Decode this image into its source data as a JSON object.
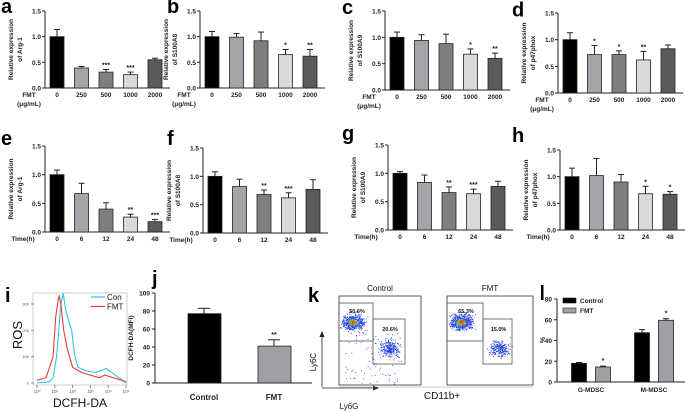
{
  "chart_data": [
    {
      "panel": "a",
      "type": "bar",
      "categories": [
        "0",
        "250",
        "500",
        "1000",
        "2000"
      ],
      "values": [
        1.0,
        0.39,
        0.31,
        0.26,
        0.55
      ],
      "errors": [
        0.14,
        0.03,
        0.05,
        0.05,
        0.03
      ],
      "significance": [
        "",
        "",
        "***",
        "***",
        ""
      ],
      "xlabel_lines": [
        "FMT",
        "(μg/mL)"
      ],
      "ylabel_lines": [
        "Relative expression",
        "of Arg-1"
      ],
      "ylim": [
        0,
        1.5
      ],
      "yticks": [
        "0.0",
        "0.5",
        "1.0",
        "1.5"
      ]
    },
    {
      "panel": "b",
      "type": "bar",
      "categories": [
        "0",
        "250",
        "500",
        "1000",
        "2000"
      ],
      "values": [
        1.0,
        0.99,
        0.92,
        0.65,
        0.62
      ],
      "errors": [
        0.1,
        0.07,
        0.17,
        0.1,
        0.13
      ],
      "significance": [
        "",
        "",
        "",
        "*",
        "**"
      ],
      "xlabel_lines": [
        "FMT",
        "(μg/mL)"
      ],
      "ylabel_lines": [
        "Relative expression",
        "of S100A8"
      ],
      "ylim": [
        0,
        1.5
      ],
      "yticks": [
        "0.0",
        "0.5",
        "1.0",
        "1.5"
      ]
    },
    {
      "panel": "c",
      "type": "bar",
      "categories": [
        "0",
        "250",
        "500",
        "1000",
        "2000"
      ],
      "values": [
        1.0,
        0.94,
        0.88,
        0.68,
        0.6
      ],
      "errors": [
        0.1,
        0.11,
        0.18,
        0.1,
        0.1
      ],
      "significance": [
        "",
        "",
        "",
        "*",
        "**"
      ],
      "xlabel_lines": [
        "FMT",
        "(μg/mL)"
      ],
      "ylabel_lines": [
        "Relative expression",
        "of S100A9"
      ],
      "ylim": [
        0,
        1.5
      ],
      "yticks": [
        "0.0",
        "0.5",
        "1.0",
        "1.5"
      ]
    },
    {
      "panel": "d",
      "type": "bar",
      "categories": [
        "0",
        "250",
        "500",
        "1000",
        "2000"
      ],
      "values": [
        1.0,
        0.72,
        0.72,
        0.62,
        0.83
      ],
      "errors": [
        0.13,
        0.17,
        0.07,
        0.16,
        0.07
      ],
      "significance": [
        "",
        "*",
        "*",
        "**",
        ""
      ],
      "xlabel_lines": [
        "FMT",
        "(μg/mL)"
      ],
      "ylabel_lines": [
        "Relative expression",
        "of p47phox"
      ],
      "ylim": [
        0,
        1.5
      ],
      "yticks": [
        "0.0",
        "0.5",
        "1.0",
        "1.5"
      ]
    },
    {
      "panel": "e",
      "type": "bar",
      "categories": [
        "0",
        "6",
        "12",
        "24",
        "48"
      ],
      "values": [
        1.0,
        0.67,
        0.4,
        0.26,
        0.18
      ],
      "errors": [
        0.08,
        0.18,
        0.11,
        0.05,
        0.04
      ],
      "significance": [
        "",
        "",
        "",
        "**",
        "***"
      ],
      "xlabel_lines": [
        "Time(h)"
      ],
      "ylabel_lines": [
        "Relative expression",
        "of Arg-1"
      ],
      "ylim": [
        0,
        1.5
      ],
      "yticks": [
        "0.0",
        "0.5",
        "1.0",
        "1.5"
      ]
    },
    {
      "panel": "f",
      "type": "bar",
      "categories": [
        "0",
        "6",
        "12",
        "24",
        "48"
      ],
      "values": [
        1.0,
        0.82,
        0.68,
        0.62,
        0.77
      ],
      "errors": [
        0.08,
        0.13,
        0.08,
        0.09,
        0.17
      ],
      "significance": [
        "",
        "",
        "**",
        "***",
        ""
      ],
      "xlabel_lines": [
        "Time(h)"
      ],
      "ylabel_lines": [
        "Relative expression",
        "of S100A8"
      ],
      "ylim": [
        0,
        1.5
      ],
      "yticks": [
        "0.0",
        "0.5",
        "1.0",
        "1.5"
      ]
    },
    {
      "panel": "g",
      "type": "bar",
      "categories": [
        "0",
        "6",
        "12",
        "24",
        "48"
      ],
      "values": [
        1.0,
        0.84,
        0.66,
        0.64,
        0.77
      ],
      "errors": [
        0.03,
        0.13,
        0.1,
        0.08,
        0.09
      ],
      "significance": [
        "",
        "",
        "**",
        "***",
        ""
      ],
      "xlabel_lines": [
        "Time(h)"
      ],
      "ylabel_lines": [
        "Relative expression",
        "of S100A9"
      ],
      "ylim": [
        0,
        1.5
      ],
      "yticks": [
        "0.0",
        "0.5",
        "1.0",
        "1.5"
      ]
    },
    {
      "panel": "h",
      "type": "bar",
      "categories": [
        "0",
        "6",
        "12",
        "24",
        "48"
      ],
      "values": [
        1.0,
        1.02,
        0.9,
        0.68,
        0.67
      ],
      "errors": [
        0.16,
        0.32,
        0.14,
        0.14,
        0.05
      ],
      "significance": [
        "",
        "",
        "",
        "*",
        "*"
      ],
      "xlabel_lines": [
        "Time(h)"
      ],
      "ylabel_lines": [
        "Relative expression",
        "of p47phox"
      ],
      "ylim": [
        0,
        1.5
      ],
      "yticks": [
        "0.0",
        "0.5",
        "1.0",
        "1.5"
      ]
    },
    {
      "panel": "i",
      "type": "line",
      "xlabel": "DCFH-DA",
      "ylabel": "ROS",
      "xscale": "log",
      "xlim": [
        1,
        100000
      ],
      "xticks": [
        "10⁰",
        "10¹",
        "10²",
        "10³",
        "10⁴",
        "10⁵"
      ],
      "ylim": [
        0,
        350
      ],
      "yticks": [
        "0",
        "100",
        "200",
        "300"
      ],
      "legend_position": "top-right",
      "series": [
        {
          "name": "Con",
          "color": "#29c4f0",
          "x": [
            1,
            5,
            8,
            12.6,
            22,
            30,
            40,
            63,
            89,
            126,
            200,
            630,
            2000,
            5000,
            7900,
            15800,
            40000,
            100000
          ],
          "y": [
            0,
            5,
            20,
            100,
            300,
            340,
            280,
            230,
            200,
            110,
            60,
            45,
            40,
            50,
            55,
            40,
            20,
            0
          ]
        },
        {
          "name": "FMT",
          "color": "#f0363a",
          "x": [
            1,
            3.2,
            8,
            11.2,
            15.8,
            17.8,
            22,
            31.6,
            50,
            100,
            316,
            1000,
            3160,
            6300,
            20000,
            100000
          ],
          "y": [
            10,
            20,
            100,
            250,
            320,
            330,
            300,
            200,
            130,
            60,
            40,
            30,
            20,
            30,
            20,
            5
          ]
        }
      ]
    },
    {
      "panel": "j",
      "type": "bar",
      "categories": [
        "Control",
        "FMT"
      ],
      "values": [
        77,
        41
      ],
      "errors": [
        6,
        7
      ],
      "significance": [
        "",
        "**"
      ],
      "ylabel": "DCFH-DA(MFI)",
      "ylim": [
        0,
        100
      ],
      "yticks": [
        "0",
        "20",
        "40",
        "60",
        "80",
        "100"
      ],
      "colors": [
        "#000000",
        "#a0a0a4"
      ]
    },
    {
      "panel": "k",
      "type": "scatter",
      "xlabel": "Ly6G",
      "ylabel": "Ly6C",
      "shared_label": "CD11b+",
      "plots": [
        {
          "title": "Control",
          "gates": [
            "50.6%",
            "20.6%"
          ]
        },
        {
          "title": "FMT",
          "gates": [
            "65.3%",
            "15.0%"
          ]
        }
      ]
    },
    {
      "panel": "l",
      "type": "bar",
      "categories": [
        "G-MDSC",
        "M-MDSC"
      ],
      "ylabel": "%",
      "ylim": [
        0,
        80
      ],
      "yticks": [
        "0",
        "20",
        "40",
        "60",
        "80"
      ],
      "legend_position": "top-left",
      "series": [
        {
          "name": "Control",
          "color": "#000000",
          "values": [
            18,
            47.5
          ],
          "errors": [
            0.8,
            3
          ],
          "significance": [
            "",
            ""
          ]
        },
        {
          "name": "FMT",
          "color": "#a0a0a4",
          "values": [
            14.5,
            59.5
          ],
          "errors": [
            0.8,
            1.5
          ],
          "significance": [
            "*",
            "*"
          ]
        }
      ]
    }
  ],
  "bar_colors": [
    "#000000",
    "#a4a4aa",
    "#7f7f7f",
    "#d9d9d9",
    "#5a5a5a"
  ]
}
